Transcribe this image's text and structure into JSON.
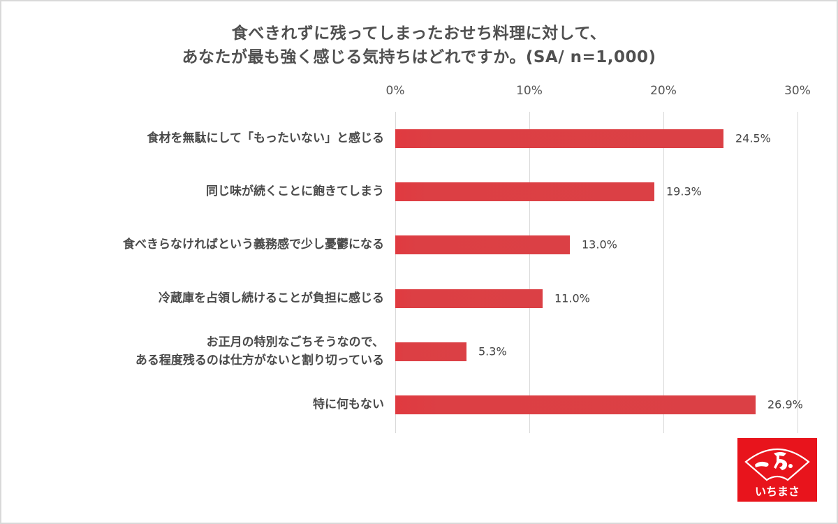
{
  "chart_data": {
    "type": "bar",
    "orientation": "horizontal",
    "title": "食べきれずに残ってしまったおせち料理に対して、あなたが最も強く感じる気持ちはどれですか。(SA/ n=1,000)",
    "title_lines": [
      "食べきれずに残ってしまったおせち料理に対して、",
      "あなたが最も強く感じる気持ちはどれですか。(SA/ n=1,000)"
    ],
    "categories": [
      "食材を無駄にして「もったいない」と感じる",
      "同じ味が続くことに飽きてしまう",
      "食べきらなければという義務感で少し憂鬱になる",
      "冷蔵庫を占領し続けることが負担に感じる",
      "お正月の特別なごちそうなので、ある程度残るのは仕方がないと割り切っている",
      "特に何もない"
    ],
    "category_lines": [
      [
        "食材を無駄にして「もったいない」と感じる"
      ],
      [
        "同じ味が続くことに飽きてしまう"
      ],
      [
        "食べきらなければという義務感で少し憂鬱になる"
      ],
      [
        "冷蔵庫を占領し続けることが負担に感じる"
      ],
      [
        "お正月の特別なごちそうなので、",
        "ある程度残るのは仕方がないと割り切っている"
      ],
      [
        "特に何もない"
      ]
    ],
    "values": [
      24.5,
      19.3,
      13.0,
      11.0,
      5.3,
      26.9
    ],
    "value_labels": [
      "24.5%",
      "19.3%",
      "13.0%",
      "11.0%",
      "5.3%",
      "26.9%"
    ],
    "xlabel": "",
    "ylabel": "",
    "xlim": [
      0,
      30
    ],
    "x_ticks": [
      "0%",
      "10%",
      "20%",
      "30%"
    ],
    "x_tick_values": [
      0,
      10,
      20,
      30
    ],
    "x_axis_position": "top",
    "grid": true,
    "legend": null,
    "bar_color": "#db4045"
  },
  "logo": {
    "brand_text": "いちまさ",
    "background_color": "#e8141c"
  }
}
